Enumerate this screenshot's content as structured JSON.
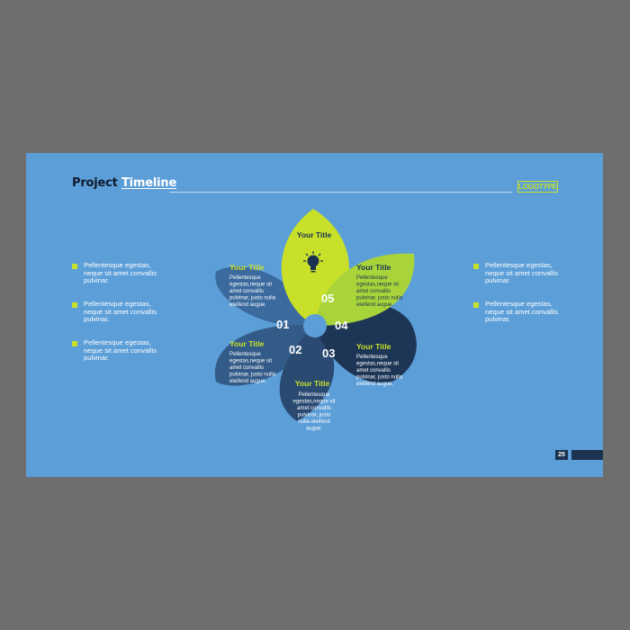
{
  "header": {
    "title_part1": "Project",
    "title_part2": "Timeline",
    "logo": "LOGOTYPE"
  },
  "left_bullets": [
    "Pellentesque egestas, neque sit amet convallis pulvinar.",
    "Pellentesque egestas, neque sit amet convallis pulvinar.",
    "Pellentesque egestas, neque sit amet convallis pulvinar."
  ],
  "right_bullets": [
    "Pellentesque egestas, neque sit amet convallis pulvinar.",
    "Pellentesque egestas, neque sit amet convallis pulvinar."
  ],
  "center_icon": "lightbulb-icon",
  "petals": [
    {
      "id": "top",
      "title": "Your Title",
      "color": "#c8e02a",
      "title_color": "#1b3350"
    },
    {
      "id": "01",
      "number": "01",
      "title": "Your Title",
      "body": [
        "Pellentesque",
        "egestas,neque sit",
        "amet convallis",
        "pulvinar, justo nulla",
        "eleifend augue."
      ],
      "color": "#3b6a9e",
      "title_color": "#c8e02a"
    },
    {
      "id": "02",
      "number": "02",
      "title": "Your Title",
      "body": [
        "Pellentesque",
        "egestas,neque sit",
        "amet convallis",
        "pulvinar, justo nulla",
        "eleifend augue."
      ],
      "color": "#335b88",
      "title_color": "#c8e02a"
    },
    {
      "id": "03",
      "number": "03",
      "title": "Your Title",
      "body": [
        "Pellentesque",
        "egestas,neque sit",
        "amet convallis",
        "pulvinar, justo",
        "nulla eleifend",
        "augue."
      ],
      "color": "#2a4a72",
      "title_color": "#c8e02a"
    },
    {
      "id": "04",
      "number": "04",
      "title": "Your Title",
      "body": [
        "Pellentesque",
        "egestas,neque sit",
        "amet convallis",
        "pulvinar, justo nulla",
        "eleifend augue."
      ],
      "color": "#1e3656",
      "title_color": "#c8e02a"
    },
    {
      "id": "05",
      "number": "05",
      "title": "Your Title",
      "body": [
        "Pellentesque",
        "egestas,neque sit",
        "amet convallis",
        "pulvinar, justo nulla",
        "eleifend augue."
      ],
      "color": "#a8d43a",
      "title_color": "#1b3350"
    }
  ],
  "page_number": "25"
}
